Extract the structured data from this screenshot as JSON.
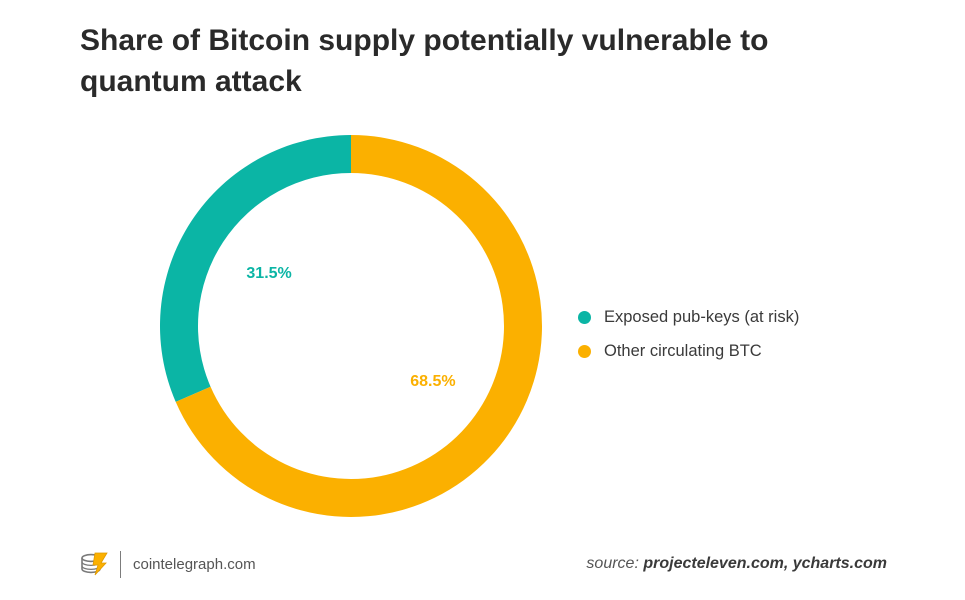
{
  "title": "Share of Bitcoin supply potentially vulnerable to quantum attack",
  "chart_data": {
    "type": "pie",
    "style": "donut",
    "categories": [
      "Exposed pub-keys (at risk)",
      "Other circulating BTC"
    ],
    "values": [
      31.5,
      68.5
    ],
    "value_labels": [
      "31.5%",
      "68.5%"
    ],
    "colors": [
      "#0bb5a5",
      "#fbb000"
    ],
    "legend_position": "right"
  },
  "footer": {
    "site": "cointelegraph.com",
    "source_prefix": "source:",
    "source_names": "projecteleven.com, ycharts.com"
  }
}
